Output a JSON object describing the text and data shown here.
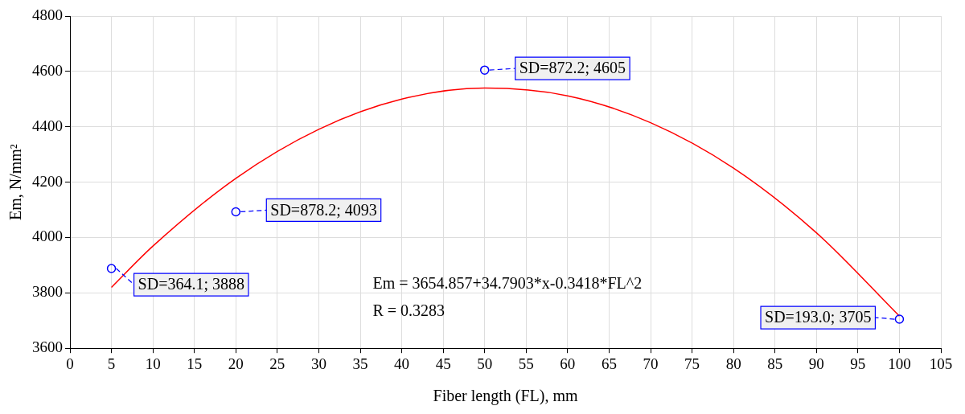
{
  "chart_data": {
    "type": "scatter",
    "xlabel": "Fiber length (FL), mm",
    "ylabel": "Em, N/mm²",
    "xlim": [
      0,
      105
    ],
    "xticks": [
      0,
      5,
      10,
      15,
      20,
      25,
      30,
      35,
      40,
      45,
      50,
      55,
      60,
      65,
      70,
      75,
      80,
      85,
      90,
      95,
      100,
      105
    ],
    "ylim": [
      3600,
      4800
    ],
    "yticks": [
      3600,
      3800,
      4000,
      4200,
      4400,
      4600,
      4800
    ],
    "grid": true,
    "legend": false,
    "series": [
      {
        "color": "#0000ff",
        "marker": "circle",
        "x": [
          5,
          20,
          50,
          100
        ],
        "values": [
          3888,
          4093,
          4605,
          3705
        ]
      },
      {
        "type": "line",
        "color": "#ff0000",
        "marker": "none",
        "line_style": "solid",
        "x": [
          5,
          10,
          20,
          30,
          40,
          50,
          60,
          70,
          80,
          90,
          100
        ],
        "values": [
          3820,
          3969,
          4214,
          4391,
          4500,
          4540,
          4512,
          4415,
          4251,
          4017,
          3716
        ]
      }
    ],
    "annotations": [
      {
        "text": "SD=364.1; 3888",
        "x": 5,
        "y": 3888
      },
      {
        "text": "SD=878.2; 4093",
        "x": 20,
        "y": 4093
      },
      {
        "text": "SD=872.2; 4605",
        "x": 50,
        "y": 4605
      },
      {
        "text": "SD=193.0; 3705",
        "x": 100,
        "y": 3705
      },
      "Em = 3654.857+34.7903*x-0.3418*FL^2",
      "R = 0.3283"
    ]
  }
}
